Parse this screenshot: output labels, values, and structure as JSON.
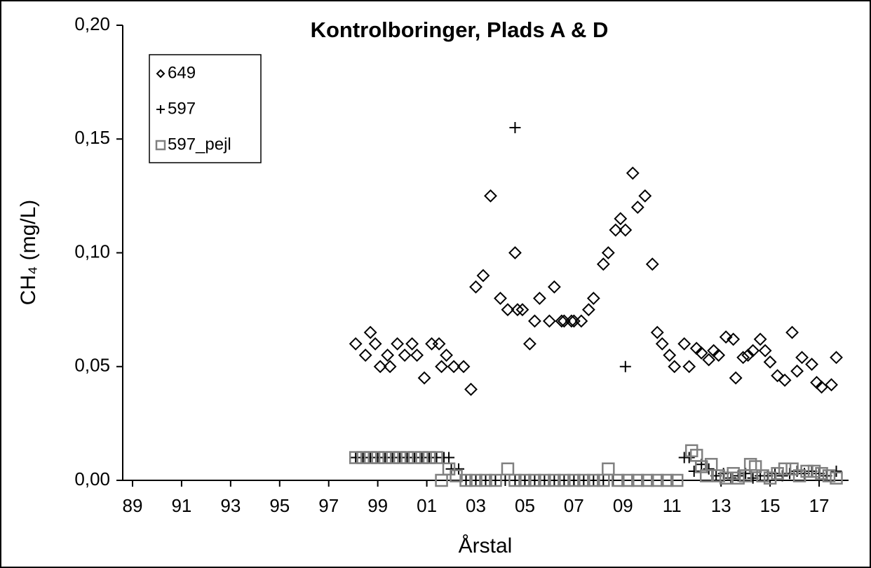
{
  "chart_data": {
    "type": "scatter",
    "title": "Kontrolboringer, Plads A & D",
    "x_label": "Årstal",
    "y_label": "CH₄ (mg/L)",
    "xlim": [
      1988.6,
      2018.2
    ],
    "xticks": [
      {
        "value": 1989,
        "label": "89"
      },
      {
        "value": 1991,
        "label": "91"
      },
      {
        "value": 1993,
        "label": "93"
      },
      {
        "value": 1995,
        "label": "95"
      },
      {
        "value": 1997,
        "label": "97"
      },
      {
        "value": 1999,
        "label": "99"
      },
      {
        "value": 2001,
        "label": "01"
      },
      {
        "value": 2003,
        "label": "03"
      },
      {
        "value": 2005,
        "label": "05"
      },
      {
        "value": 2007,
        "label": "07"
      },
      {
        "value": 2009,
        "label": "09"
      },
      {
        "value": 2011,
        "label": "11"
      },
      {
        "value": 2013,
        "label": "13"
      },
      {
        "value": 2015,
        "label": "15"
      },
      {
        "value": 2017,
        "label": "17"
      }
    ],
    "ylim": [
      0,
      0.2
    ],
    "yticks": [
      {
        "value": 0,
        "label": "0,00"
      },
      {
        "value": 0.05,
        "label": "0,05"
      },
      {
        "value": 0.1,
        "label": "0,10"
      },
      {
        "value": 0.15,
        "label": "0,15"
      },
      {
        "value": 0.2,
        "label": "0,20"
      }
    ],
    "legend": "top-left",
    "series": [
      {
        "name": "649",
        "color": "#000000",
        "marker": "diamond",
        "x": [
          1998.1,
          1998.5,
          1998.7,
          1998.9,
          1999.1,
          1999.4,
          1999.5,
          1999.8,
          2000.1,
          2000.4,
          2000.6,
          2000.9,
          2001.2,
          2001.5,
          2001.6,
          2001.8,
          2002.1,
          2002.5,
          2002.8,
          2003.0,
          2003.3,
          2003.6,
          2004.0,
          2004.3,
          2004.6,
          2004.7,
          2004.9,
          2005.2,
          2005.4,
          2005.6,
          2006.0,
          2006.2,
          2006.5,
          2006.6,
          2006.9,
          2007.0,
          2007.3,
          2007.6,
          2007.8,
          2008.2,
          2008.4,
          2008.7,
          2008.9,
          2009.1,
          2009.4,
          2009.6,
          2009.9,
          2010.2,
          2010.4,
          2010.6,
          2010.9,
          2011.1,
          2011.5,
          2011.7,
          2012.0,
          2012.2,
          2012.5,
          2012.7,
          2012.9,
          2013.2,
          2013.5,
          2013.6,
          2013.9,
          2014.1,
          2014.3,
          2014.6,
          2014.8,
          2015.0,
          2015.3,
          2015.6,
          2015.9,
          2016.1,
          2016.3,
          2016.7,
          2016.9,
          2017.1,
          2017.5,
          2017.7
        ],
        "values": [
          0.06,
          0.055,
          0.065,
          0.06,
          0.05,
          0.055,
          0.05,
          0.06,
          0.055,
          0.06,
          0.055,
          0.045,
          0.06,
          0.06,
          0.05,
          0.055,
          0.05,
          0.05,
          0.04,
          0.085,
          0.09,
          0.125,
          0.08,
          0.075,
          0.1,
          0.075,
          0.075,
          0.06,
          0.07,
          0.08,
          0.07,
          0.085,
          0.07,
          0.07,
          0.07,
          0.07,
          0.07,
          0.075,
          0.08,
          0.095,
          0.1,
          0.11,
          0.115,
          0.11,
          0.135,
          0.12,
          0.125,
          0.095,
          0.065,
          0.06,
          0.055,
          0.05,
          0.06,
          0.05,
          0.058,
          0.056,
          0.053,
          0.057,
          0.055,
          0.063,
          0.062,
          0.045,
          0.054,
          0.055,
          0.057,
          0.062,
          0.057,
          0.052,
          0.046,
          0.044,
          0.065,
          0.048,
          0.054,
          0.051,
          0.043,
          0.041,
          0.042,
          0.054
        ]
      },
      {
        "name": "597",
        "color": "#000000",
        "marker": "plus",
        "x": [
          1998.1,
          1998.4,
          1998.7,
          1999.0,
          1999.3,
          1999.6,
          1999.9,
          2000.2,
          2000.5,
          2000.8,
          2001.1,
          2001.4,
          2001.7,
          2001.9,
          2002.0,
          2002.3,
          2002.6,
          2003.0,
          2003.4,
          2003.8,
          2004.2,
          2004.6,
          2004.6,
          2005.0,
          2005.4,
          2005.8,
          2006.2,
          2006.6,
          2007.0,
          2007.4,
          2007.8,
          2008.2,
          2008.6,
          2009.0,
          2009.1,
          2009.4,
          2009.8,
          2010.2,
          2010.6,
          2011.0,
          2011.5,
          2011.7,
          2011.9,
          2012.2,
          2012.5,
          2012.8,
          2013.1,
          2013.4,
          2013.7,
          2014.0,
          2014.3,
          2014.6,
          2014.9,
          2015.2,
          2015.5,
          2015.8,
          2016.1,
          2016.4,
          2016.7,
          2017.0,
          2017.3,
          2017.7
        ],
        "values": [
          0.01,
          0.01,
          0.01,
          0.01,
          0.01,
          0.01,
          0.01,
          0.01,
          0.01,
          0.01,
          0.01,
          0.01,
          0.01,
          0.01,
          0.005,
          0.005,
          0,
          0,
          0,
          0,
          0,
          0,
          0.155,
          0,
          0,
          0,
          0,
          0,
          0,
          0,
          0,
          0,
          0,
          0,
          0.05,
          0,
          0,
          0,
          0,
          0,
          0.01,
          0.01,
          0.004,
          0.007,
          0.005,
          0.002,
          0.003,
          0.001,
          0.002,
          0.003,
          0.001,
          0.002,
          0.002,
          0.003,
          0.002,
          0.003,
          0.004,
          0.003,
          0.004,
          0.003,
          0.002,
          0.004
        ]
      },
      {
        "name": "597_pejl",
        "color": "#808080",
        "marker": "square",
        "x": [
          1998.1,
          1998.4,
          1998.7,
          1999.0,
          1999.3,
          1999.6,
          1999.9,
          2000.2,
          2000.5,
          2000.8,
          2001.1,
          2001.4,
          2001.6,
          2001.9,
          2002.2,
          2002.6,
          2003.0,
          2003.4,
          2003.8,
          2004.3,
          2004.6,
          2005.0,
          2005.4,
          2005.8,
          2006.2,
          2006.6,
          2007.0,
          2007.4,
          2007.8,
          2008.2,
          2008.4,
          2008.8,
          2009.2,
          2009.6,
          2010.0,
          2010.4,
          2010.8,
          2011.2,
          2011.8,
          2012.0,
          2012.2,
          2012.4,
          2012.6,
          2012.9,
          2013.2,
          2013.5,
          2013.7,
          2014.0,
          2014.2,
          2014.4,
          2014.7,
          2015.0,
          2015.3,
          2015.6,
          2015.9,
          2016.2,
          2016.5,
          2016.8,
          2017.1,
          2017.4,
          2017.7
        ],
        "values": [
          0.01,
          0.01,
          0.01,
          0.01,
          0.01,
          0.01,
          0.01,
          0.01,
          0.01,
          0.01,
          0.01,
          0.01,
          0,
          0.005,
          0.002,
          0,
          0,
          0,
          0,
          0.005,
          0,
          0,
          0,
          0,
          0,
          0,
          0,
          0,
          0,
          0,
          0.005,
          0,
          0,
          0,
          0,
          0,
          0,
          0,
          0.013,
          0.011,
          0.006,
          0.002,
          0.007,
          0.002,
          0.001,
          0.003,
          0.001,
          0.002,
          0.007,
          0.006,
          0.002,
          0.001,
          0.003,
          0.005,
          0.005,
          0.002,
          0.004,
          0.004,
          0.003,
          0.002,
          0.001
        ]
      }
    ]
  }
}
